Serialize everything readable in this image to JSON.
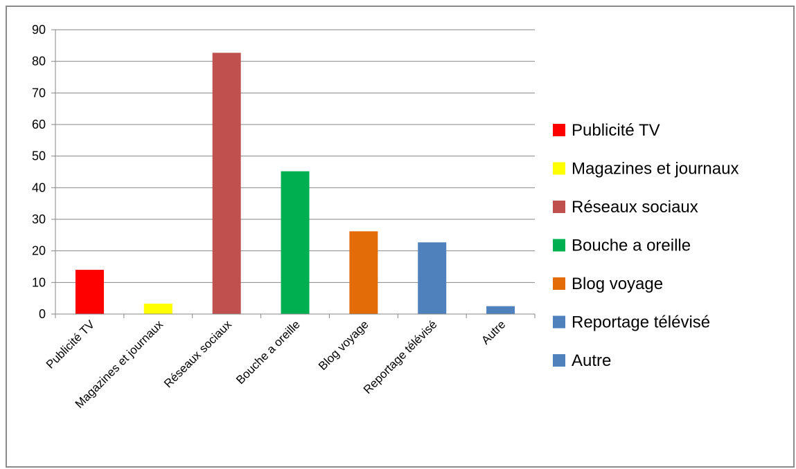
{
  "chart_data": {
    "type": "bar",
    "title": "",
    "xlabel": "",
    "ylabel": "",
    "ylim": [
      0,
      90
    ],
    "yticks": [
      0,
      10,
      20,
      30,
      40,
      50,
      60,
      70,
      80,
      90
    ],
    "grid": true,
    "legend_position": "right",
    "categories": [
      "Publicité TV",
      "Magazines et journaux",
      "Réseaux sociaux",
      "Bouche a oreille",
      "Blog voyage",
      "Reportage télévisé",
      "Autre"
    ],
    "values": [
      14,
      3.3,
      82.7,
      45.2,
      26.2,
      22.7,
      2.5
    ],
    "colors": [
      "#ff0000",
      "#ffff00",
      "#c0504d",
      "#00b050",
      "#e36c09",
      "#4f81bd",
      "#4f81bd"
    ],
    "legend": [
      "Publicité TV",
      "Magazines et journaux",
      "Réseaux sociaux",
      "Bouche a oreille",
      "Blog voyage",
      "Reportage télévisé",
      "Autre"
    ]
  }
}
